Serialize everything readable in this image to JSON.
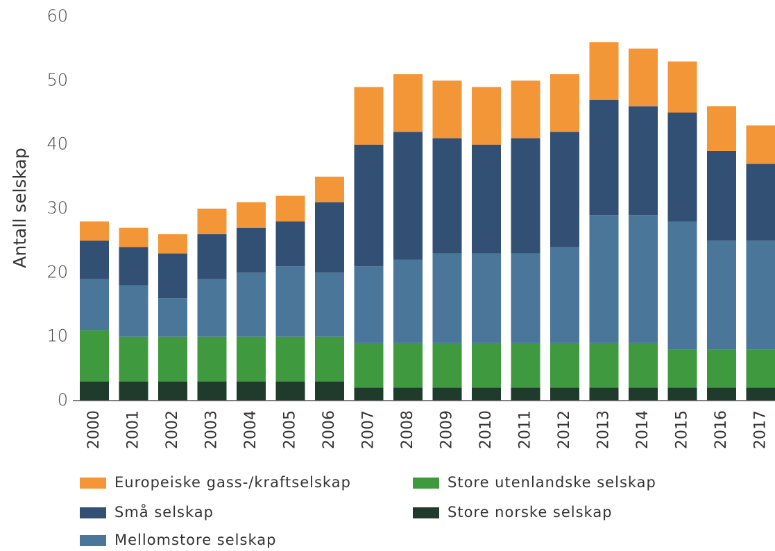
{
  "chart_data": {
    "type": "stacked_bar",
    "y_label": "Antall selskap",
    "categories": [
      "2000",
      "2001",
      "2002",
      "2003",
      "2004",
      "2005",
      "2006",
      "2007",
      "2008",
      "2009",
      "2010",
      "2011",
      "2012",
      "2013",
      "2014",
      "2015",
      "2016",
      "2017"
    ],
    "series": [
      {
        "name": "Store norske selskap",
        "color": "#1e3b2b",
        "values": [
          3,
          3,
          3,
          3,
          3,
          3,
          3,
          2,
          2,
          2,
          2,
          2,
          2,
          2,
          2,
          2,
          2,
          2
        ]
      },
      {
        "name": "Store utenlandske selskap",
        "color": "#3f9a3f",
        "values": [
          8,
          7,
          7,
          7,
          7,
          7,
          7,
          7,
          7,
          7,
          7,
          7,
          7,
          7,
          7,
          6,
          6,
          6
        ]
      },
      {
        "name": "Mellomstore selskap",
        "color": "#4a7699",
        "values": [
          8,
          8,
          6,
          9,
          10,
          11,
          10,
          12,
          13,
          14,
          14,
          14,
          15,
          20,
          20,
          20,
          17,
          17
        ]
      },
      {
        "name": "Små selskap",
        "color": "#324f74",
        "values": [
          6,
          6,
          7,
          7,
          7,
          7,
          11,
          19,
          20,
          18,
          17,
          18,
          18,
          18,
          17,
          17,
          14,
          12
        ]
      },
      {
        "name": "Europeiske gass-/kraftselskap",
        "color": "#f39638",
        "values": [
          3,
          3,
          3,
          4,
          4,
          4,
          4,
          9,
          9,
          9,
          9,
          9,
          9,
          9,
          9,
          8,
          7,
          6
        ]
      }
    ],
    "ylim": [
      0,
      60
    ],
    "yticks": [
      0,
      10,
      20,
      30,
      40,
      50,
      60
    ],
    "grid": false
  }
}
